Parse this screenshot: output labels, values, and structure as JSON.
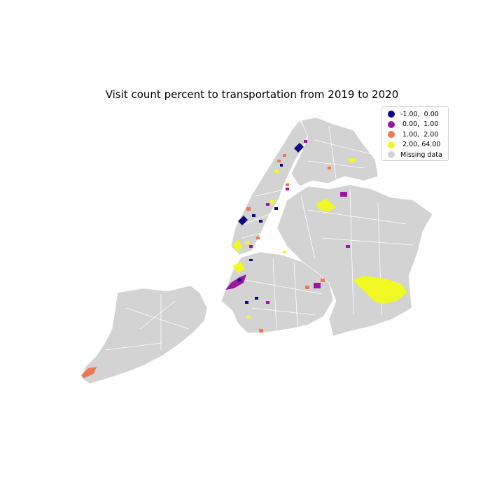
{
  "title": "Visit count percent to transportation from 2019 to 2020",
  "legend": {
    "items": [
      {
        "label": "-1.00,  0.00",
        "color": "#0d0887"
      },
      {
        "label": " 0.00,  1.00",
        "color": "#9c179e"
      },
      {
        "label": " 1.00,  2.00",
        "color": "#ed7953"
      },
      {
        "label": " 2.00, 64.00",
        "color": "#f0f921"
      },
      {
        "label": "Missing data",
        "color": "#d3d3d3"
      }
    ]
  },
  "colors": {
    "missing": "#d3d3d3",
    "boundary": "#ffffff"
  }
}
